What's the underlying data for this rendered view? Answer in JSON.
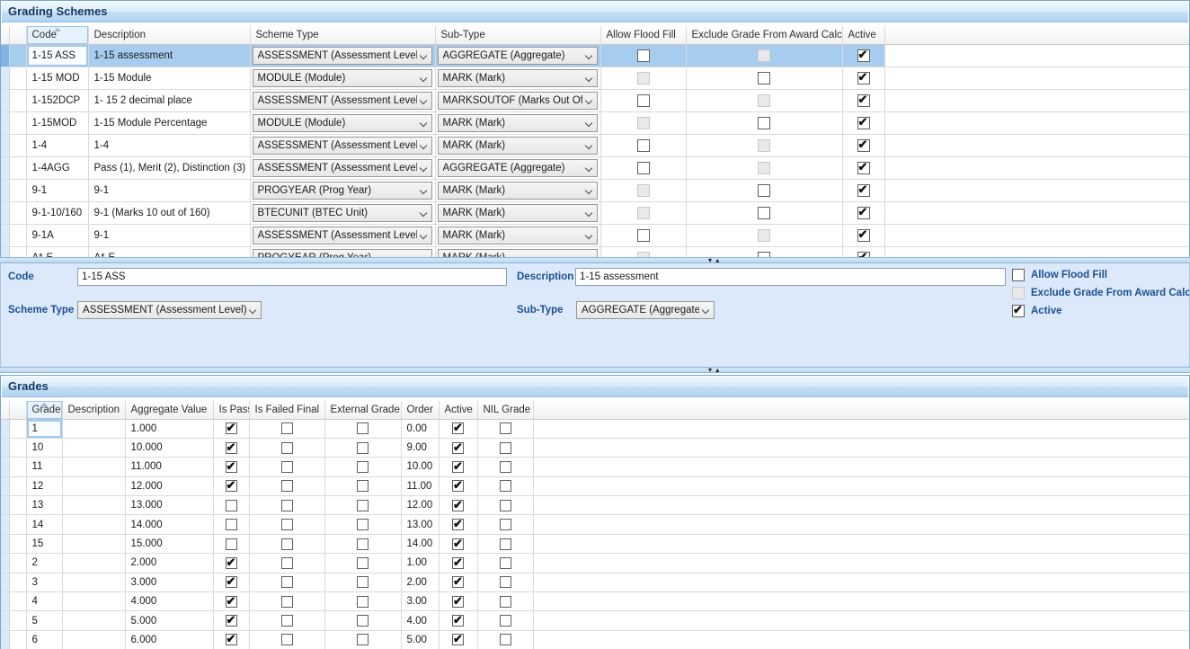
{
  "colors": {
    "panel_title_text": "#17375e",
    "titlebar_gradient_top": "#e3f1fd",
    "titlebar_gradient_bottom": "#b1d4f1",
    "panel_border": "#76a3d1",
    "selected_row": "#a6cdef",
    "detail_background": "#dbe9fa",
    "label_blue": "#1d4f91"
  },
  "grading_schemes": {
    "title": "Grading Schemes",
    "columns": [
      "Code",
      "Description",
      "Scheme Type",
      "Sub-Type",
      "Allow Flood Fill",
      "Exclude Grade From Award Calc.",
      "Active"
    ],
    "sort": {
      "column": "Code",
      "direction": "ascending"
    },
    "rows": [
      {
        "code": "1-15 ASS",
        "description": "1-15 assessment",
        "scheme_type": "ASSESSMENT (Assessment Level)",
        "sub_type": "AGGREGATE (Aggregate)",
        "allow_flood_fill": "unchecked",
        "exclude_grade": "disabled",
        "active": "checked",
        "selected": true
      },
      {
        "code": "1-15 MOD",
        "description": "1-15 Module",
        "scheme_type": "MODULE (Module)",
        "sub_type": "MARK (Mark)",
        "allow_flood_fill": "disabled",
        "exclude_grade": "unchecked",
        "active": "checked",
        "selected": false
      },
      {
        "code": "1-152DCP",
        "description": "1- 15 2 decimal place",
        "scheme_type": "ASSESSMENT (Assessment Level)",
        "sub_type": "MARKSOUTOF (Marks Out Of)",
        "allow_flood_fill": "unchecked",
        "exclude_grade": "disabled",
        "active": "checked",
        "selected": false
      },
      {
        "code": "1-15MOD",
        "description": "1-15 Module Percentage",
        "scheme_type": "MODULE (Module)",
        "sub_type": "MARK (Mark)",
        "allow_flood_fill": "disabled",
        "exclude_grade": "unchecked",
        "active": "checked",
        "selected": false
      },
      {
        "code": "1-4",
        "description": "1-4",
        "scheme_type": "ASSESSMENT (Assessment Level)",
        "sub_type": "MARK (Mark)",
        "allow_flood_fill": "unchecked",
        "exclude_grade": "disabled",
        "active": "checked",
        "selected": false
      },
      {
        "code": "1-4AGG",
        "description": "Pass (1), Merit (2), Distinction (3)",
        "scheme_type": "ASSESSMENT (Assessment Level)",
        "sub_type": "AGGREGATE (Aggregate)",
        "allow_flood_fill": "unchecked",
        "exclude_grade": "disabled",
        "active": "checked",
        "selected": false
      },
      {
        "code": "9-1",
        "description": "9-1",
        "scheme_type": "PROGYEAR (Prog Year)",
        "sub_type": "MARK (Mark)",
        "allow_flood_fill": "disabled",
        "exclude_grade": "unchecked",
        "active": "checked",
        "selected": false
      },
      {
        "code": "9-1-10/160",
        "description": "9-1 (Marks 10 out of 160)",
        "scheme_type": "BTECUNIT (BTEC Unit)",
        "sub_type": "MARK (Mark)",
        "allow_flood_fill": "disabled",
        "exclude_grade": "unchecked",
        "active": "checked",
        "selected": false
      },
      {
        "code": "9-1A",
        "description": "9-1",
        "scheme_type": "ASSESSMENT (Assessment Level)",
        "sub_type": "MARK (Mark)",
        "allow_flood_fill": "unchecked",
        "exclude_grade": "disabled",
        "active": "checked",
        "selected": false
      },
      {
        "code": "A*-E",
        "description": "A*-E",
        "scheme_type": "PROGYEAR (Prog Year)",
        "sub_type": "MARK (Mark)",
        "allow_flood_fill": "disabled",
        "exclude_grade": "unchecked",
        "active": "checked",
        "selected": false
      }
    ]
  },
  "detail": {
    "code_label": "Code",
    "code_value": "1-15 ASS",
    "description_label": "Description",
    "description_value": "1-15 assessment",
    "scheme_type_label": "Scheme Type",
    "scheme_type_value": "ASSESSMENT (Assessment Level)",
    "sub_type_label": "Sub-Type",
    "sub_type_value": "AGGREGATE (Aggregate)",
    "checkboxes": [
      {
        "label": "Allow Flood Fill",
        "state": "unchecked"
      },
      {
        "label": "Exclude Grade From Award Calc.",
        "state": "disabled"
      },
      {
        "label": "Active",
        "state": "checked"
      }
    ]
  },
  "grades": {
    "title": "Grades",
    "columns": [
      "Grade",
      "Description",
      "Aggregate Value",
      "Is Pass",
      "Is Failed Final",
      "External Grade",
      "Order",
      "Active",
      "NIL Grade"
    ],
    "sort": {
      "column": "Grade",
      "direction": "ascending"
    },
    "rows": [
      {
        "grade": "1",
        "description": "",
        "aggregate_value": "1.000",
        "is_pass": "checked",
        "is_failed_final": "unchecked",
        "external_grade": "unchecked",
        "order": "0.00",
        "active": "checked",
        "nil_grade": "unchecked"
      },
      {
        "grade": "10",
        "description": "",
        "aggregate_value": "10.000",
        "is_pass": "checked",
        "is_failed_final": "unchecked",
        "external_grade": "unchecked",
        "order": "9.00",
        "active": "checked",
        "nil_grade": "unchecked"
      },
      {
        "grade": "11",
        "description": "",
        "aggregate_value": "11.000",
        "is_pass": "checked",
        "is_failed_final": "unchecked",
        "external_grade": "unchecked",
        "order": "10.00",
        "active": "checked",
        "nil_grade": "unchecked"
      },
      {
        "grade": "12",
        "description": "",
        "aggregate_value": "12.000",
        "is_pass": "checked",
        "is_failed_final": "unchecked",
        "external_grade": "unchecked",
        "order": "11.00",
        "active": "checked",
        "nil_grade": "unchecked"
      },
      {
        "grade": "13",
        "description": "",
        "aggregate_value": "13.000",
        "is_pass": "unchecked",
        "is_failed_final": "unchecked",
        "external_grade": "unchecked",
        "order": "12.00",
        "active": "checked",
        "nil_grade": "unchecked"
      },
      {
        "grade": "14",
        "description": "",
        "aggregate_value": "14.000",
        "is_pass": "unchecked",
        "is_failed_final": "unchecked",
        "external_grade": "unchecked",
        "order": "13.00",
        "active": "checked",
        "nil_grade": "unchecked"
      },
      {
        "grade": "15",
        "description": "",
        "aggregate_value": "15.000",
        "is_pass": "unchecked",
        "is_failed_final": "unchecked",
        "external_grade": "unchecked",
        "order": "14.00",
        "active": "checked",
        "nil_grade": "unchecked"
      },
      {
        "grade": "2",
        "description": "",
        "aggregate_value": "2.000",
        "is_pass": "checked",
        "is_failed_final": "unchecked",
        "external_grade": "unchecked",
        "order": "1.00",
        "active": "checked",
        "nil_grade": "unchecked"
      },
      {
        "grade": "3",
        "description": "",
        "aggregate_value": "3.000",
        "is_pass": "checked",
        "is_failed_final": "unchecked",
        "external_grade": "unchecked",
        "order": "2.00",
        "active": "checked",
        "nil_grade": "unchecked"
      },
      {
        "grade": "4",
        "description": "",
        "aggregate_value": "4.000",
        "is_pass": "checked",
        "is_failed_final": "unchecked",
        "external_grade": "unchecked",
        "order": "3.00",
        "active": "checked",
        "nil_grade": "unchecked"
      },
      {
        "grade": "5",
        "description": "",
        "aggregate_value": "5.000",
        "is_pass": "checked",
        "is_failed_final": "unchecked",
        "external_grade": "unchecked",
        "order": "4.00",
        "active": "checked",
        "nil_grade": "unchecked"
      },
      {
        "grade": "6",
        "description": "",
        "aggregate_value": "6.000",
        "is_pass": "checked",
        "is_failed_final": "unchecked",
        "external_grade": "unchecked",
        "order": "5.00",
        "active": "checked",
        "nil_grade": "unchecked"
      }
    ]
  }
}
